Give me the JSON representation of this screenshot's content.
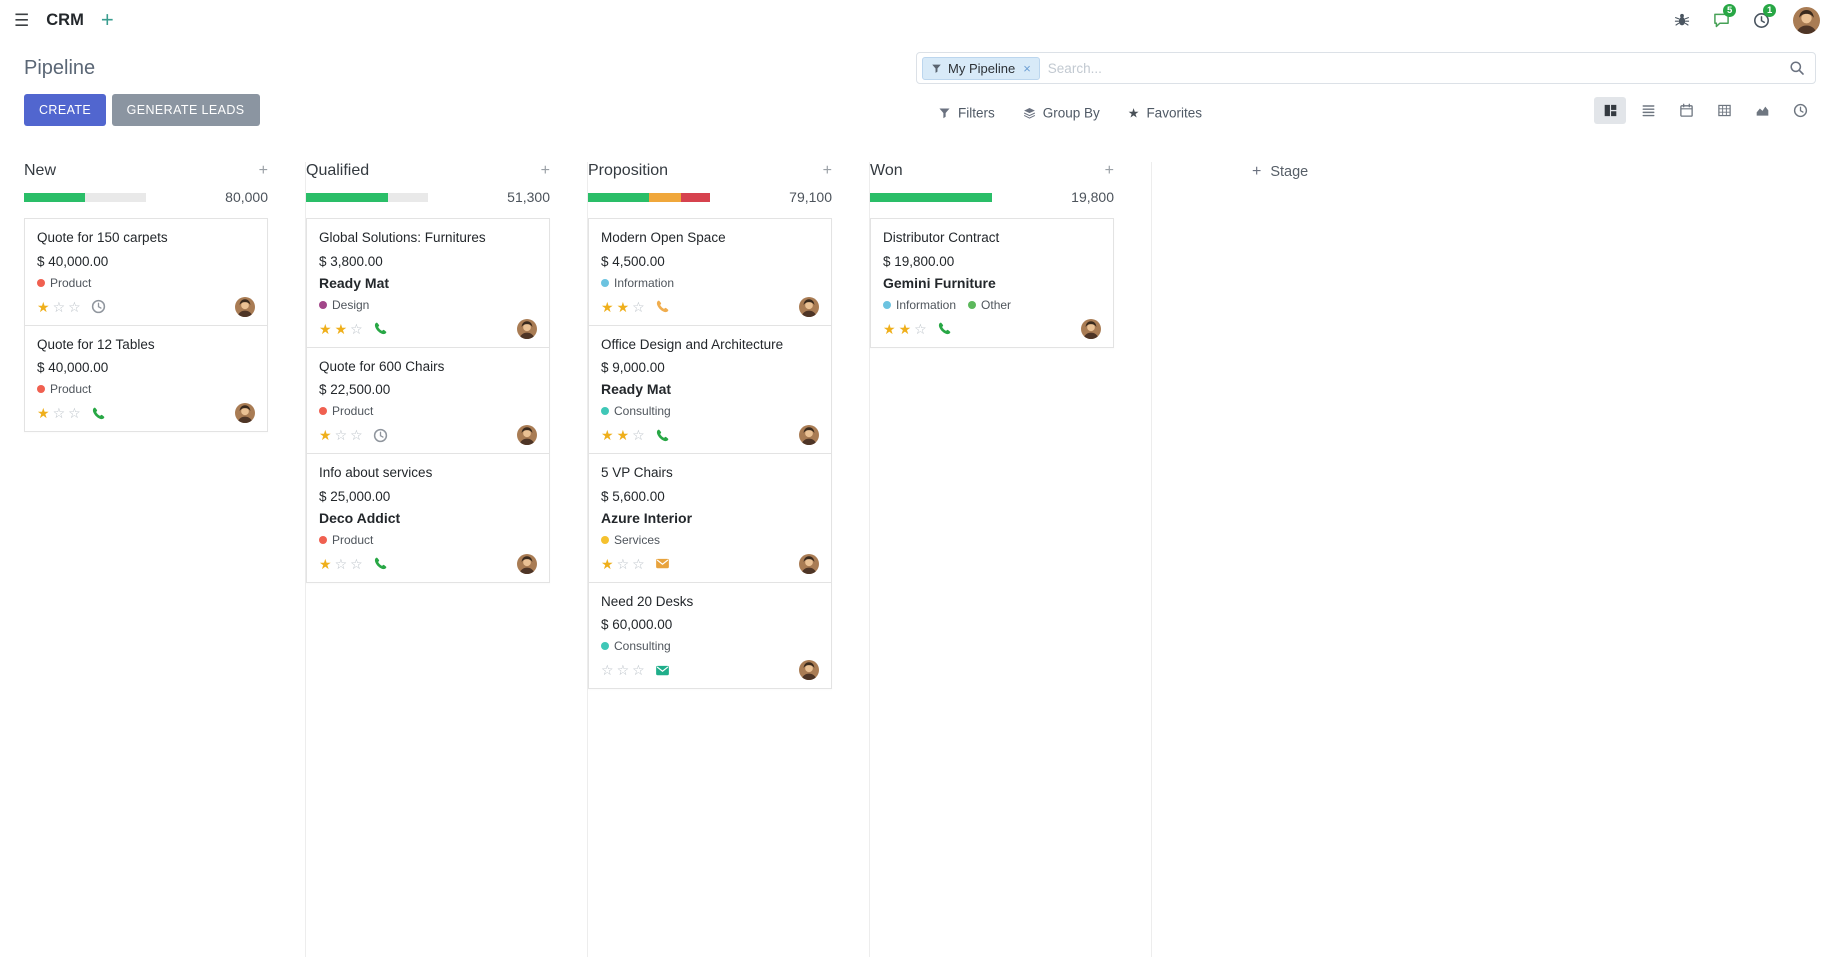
{
  "navbar": {
    "app_name": "CRM",
    "message_badge": "5",
    "activity_badge": "1"
  },
  "panel": {
    "title": "Pipeline",
    "create_label": "CREATE",
    "generate_leads_label": "GENERATE LEADS",
    "search_facet": "My Pipeline",
    "search_placeholder": "Search...",
    "filters_label": "Filters",
    "group_by_label": "Group By",
    "favorites_label": "Favorites"
  },
  "colors": {
    "primary": "#5166cf",
    "secondary_btn": "#8b95a1",
    "badge_green": "#28a745",
    "star_gold": "#efaf1b",
    "facet_bg": "#d8eaf8",
    "facet_border": "#bcd6ee"
  },
  "board": {
    "add_stage_label": "Stage",
    "max_stars": 3,
    "columns": [
      {
        "name": "New",
        "total": "80,000",
        "progress": [
          {
            "color": "#2abe68",
            "pct": 50
          },
          {
            "color": "#e9e9e9",
            "pct": 50
          }
        ],
        "cards": [
          {
            "title": "Quote for 150 carpets",
            "amount": "$ 40,000.00",
            "partner": "",
            "tags": [
              {
                "label": "Product",
                "color": "#f06050"
              }
            ],
            "stars": 1,
            "activity": {
              "icon": "clock",
              "color": "#8f959d"
            }
          },
          {
            "title": "Quote for 12 Tables",
            "amount": "$ 40,000.00",
            "partner": "",
            "tags": [
              {
                "label": "Product",
                "color": "#f06050"
              }
            ],
            "stars": 1,
            "activity": {
              "icon": "phone",
              "color": "#28a745"
            }
          }
        ]
      },
      {
        "name": "Qualified",
        "total": "51,300",
        "progress": [
          {
            "color": "#2abe68",
            "pct": 67
          },
          {
            "color": "#e9e9e9",
            "pct": 33
          }
        ],
        "cards": [
          {
            "title": "Global Solutions: Furnitures",
            "amount": "$ 3,800.00",
            "partner": "Ready Mat",
            "tags": [
              {
                "label": "Design",
                "color": "#a24689"
              }
            ],
            "stars": 2,
            "activity": {
              "icon": "phone",
              "color": "#28a745"
            }
          },
          {
            "title": "Quote for 600 Chairs",
            "amount": "$ 22,500.00",
            "partner": "",
            "tags": [
              {
                "label": "Product",
                "color": "#f06050"
              }
            ],
            "stars": 1,
            "activity": {
              "icon": "clock",
              "color": "#8f959d"
            }
          },
          {
            "title": "Info about services",
            "amount": "$ 25,000.00",
            "partner": "Deco Addict",
            "tags": [
              {
                "label": "Product",
                "color": "#f06050"
              }
            ],
            "stars": 1,
            "activity": {
              "icon": "phone",
              "color": "#28a745"
            }
          }
        ]
      },
      {
        "name": "Proposition",
        "total": "79,100",
        "progress": [
          {
            "color": "#2abe68",
            "pct": 50
          },
          {
            "color": "#f0a73b",
            "pct": 26
          },
          {
            "color": "#d6424e",
            "pct": 24
          }
        ],
        "cards": [
          {
            "title": "Modern Open Space",
            "amount": "$ 4,500.00",
            "partner": "",
            "tags": [
              {
                "label": "Information",
                "color": "#6cc3e0"
              }
            ],
            "stars": 2,
            "activity": {
              "icon": "phone",
              "color": "#f0ad4e"
            }
          },
          {
            "title": "Office Design and Architecture",
            "amount": "$ 9,000.00",
            "partner": "Ready Mat",
            "tags": [
              {
                "label": "Consulting",
                "color": "#3fc7b7"
              }
            ],
            "stars": 2,
            "activity": {
              "icon": "phone",
              "color": "#28a745"
            }
          },
          {
            "title": "5 VP Chairs",
            "amount": "$ 5,600.00",
            "partner": "Azure Interior",
            "tags": [
              {
                "label": "Services",
                "color": "#f5c12e"
              }
            ],
            "stars": 1,
            "activity": {
              "icon": "envelope",
              "color": "#e8a33d"
            }
          },
          {
            "title": "Need 20 Desks",
            "amount": "$ 60,000.00",
            "partner": "",
            "tags": [
              {
                "label": "Consulting",
                "color": "#3fc7b7"
              }
            ],
            "stars": 0,
            "activity": {
              "icon": "envelope",
              "color": "#1fae8a"
            }
          }
        ]
      },
      {
        "name": "Won",
        "total": "19,800",
        "progress": [
          {
            "color": "#2abe68",
            "pct": 100
          }
        ],
        "cards": [
          {
            "title": "Distributor Contract",
            "amount": "$ 19,800.00",
            "partner": "Gemini Furniture",
            "tags": [
              {
                "label": "Information",
                "color": "#6cc3e0"
              },
              {
                "label": "Other",
                "color": "#5cb85c"
              }
            ],
            "stars": 2,
            "activity": {
              "icon": "phone",
              "color": "#28a745"
            }
          }
        ]
      }
    ]
  }
}
